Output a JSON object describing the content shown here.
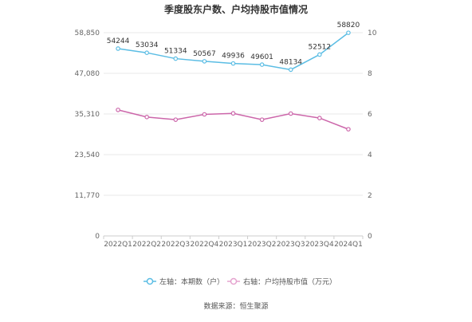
{
  "chart_data": {
    "type": "line",
    "title": "季度股东户数、户均持股市值情况",
    "categories": [
      "2022Q1",
      "2022Q2",
      "2022Q3",
      "2022Q4",
      "2023Q1",
      "2023Q2",
      "2023Q3",
      "2023Q4",
      "2024Q1"
    ],
    "left_axis": {
      "min": 0,
      "max": 58850,
      "ticks": [
        "0",
        "11,770",
        "23,540",
        "35,310",
        "47,080",
        "58,850"
      ]
    },
    "right_axis": {
      "min": 0,
      "max": 10,
      "ticks": [
        "0",
        "2",
        "4",
        "6",
        "8",
        "10"
      ]
    },
    "series": [
      {
        "name": "左轴：本期数（户）",
        "axis": "left",
        "color": "#5bbde4",
        "values": [
          54244,
          53034,
          51334,
          50567,
          49936,
          49601,
          48134,
          52512,
          58820
        ],
        "labels": [
          "54244",
          "53034",
          "51334",
          "50567",
          "49936",
          "49601",
          "48134",
          "52512",
          "58820"
        ]
      },
      {
        "name": "右轴：户均持股市值（万元）",
        "axis": "right",
        "color": "#cc66aa",
        "values": [
          6.2,
          5.85,
          5.72,
          5.98,
          6.03,
          5.72,
          6.02,
          5.8,
          5.25
        ]
      }
    ],
    "grid": "horizontal",
    "legend_position": "bottom"
  },
  "source_text": "数据来源：恒生聚源"
}
